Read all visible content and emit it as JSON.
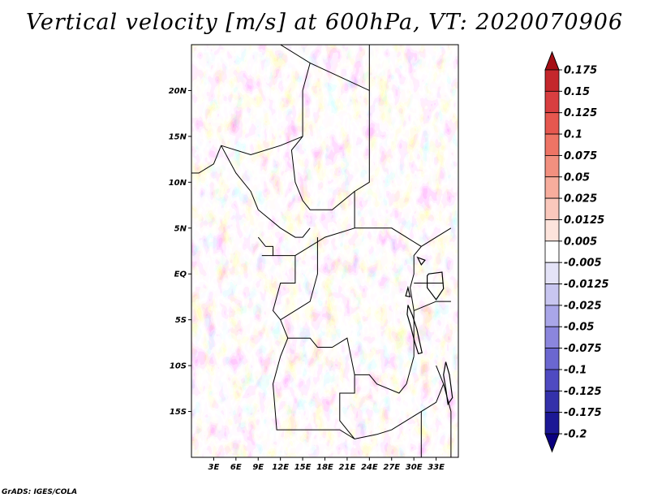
{
  "title": "Vertical velocity [m/s] at 600hPa, VT: 2020070906",
  "credit": "GrADS: IGES/COLA",
  "map": {
    "lon_range": [
      0,
      36
    ],
    "lat_range": [
      -20,
      25
    ],
    "x_ticks": [
      3,
      6,
      9,
      12,
      15,
      18,
      21,
      24,
      27,
      30,
      33
    ],
    "x_tick_labels": [
      "3E",
      "6E",
      "9E",
      "12E",
      "15E",
      "18E",
      "21E",
      "24E",
      "27E",
      "30E",
      "33E"
    ],
    "y_ticks": [
      20,
      15,
      10,
      5,
      0,
      -5,
      -10,
      -15
    ],
    "y_tick_labels": [
      "20N",
      "15N",
      "10N",
      "5N",
      "EQ",
      "5S",
      "10S",
      "15S"
    ],
    "borders": [
      [
        [
          12,
          25
        ],
        [
          16,
          23
        ],
        [
          24,
          20
        ],
        [
          24,
          25
        ]
      ],
      [
        [
          24,
          20
        ],
        [
          24,
          10
        ],
        [
          22,
          9
        ],
        [
          22,
          5
        ],
        [
          24,
          5
        ],
        [
          27,
          5
        ],
        [
          29,
          4
        ],
        [
          31,
          3
        ]
      ],
      [
        [
          16,
          23
        ],
        [
          15,
          20
        ],
        [
          15,
          15
        ],
        [
          13.5,
          13.5
        ],
        [
          14,
          10
        ],
        [
          15,
          8
        ],
        [
          16,
          7
        ],
        [
          19,
          7
        ],
        [
          22,
          9
        ]
      ],
      [
        [
          15,
          15
        ],
        [
          12,
          14
        ],
        [
          8,
          13
        ],
        [
          4,
          14
        ],
        [
          3,
          12
        ],
        [
          1,
          11
        ],
        [
          0,
          11
        ]
      ],
      [
        [
          4,
          14
        ],
        [
          6,
          11
        ],
        [
          8,
          9
        ],
        [
          9,
          7
        ],
        [
          12,
          5
        ],
        [
          14,
          4
        ],
        [
          15,
          4
        ],
        [
          16,
          5
        ]
      ],
      [
        [
          9,
          4
        ],
        [
          10,
          3
        ],
        [
          11,
          3
        ],
        [
          11,
          2
        ],
        [
          9.5,
          2
        ]
      ],
      [
        [
          11,
          2
        ],
        [
          14,
          2
        ],
        [
          14,
          -1
        ],
        [
          12,
          -1
        ],
        [
          11,
          -4
        ],
        [
          12,
          -5
        ]
      ],
      [
        [
          14,
          2
        ],
        [
          18,
          4
        ],
        [
          22,
          5
        ]
      ],
      [
        [
          17,
          4
        ],
        [
          17,
          0
        ],
        [
          16,
          -3
        ],
        [
          12,
          -5
        ],
        [
          12.5,
          -6
        ],
        [
          13,
          -7
        ],
        [
          16,
          -7
        ],
        [
          17,
          -8
        ],
        [
          19,
          -8
        ],
        [
          21,
          -7
        ],
        [
          22,
          -11
        ],
        [
          24,
          -11
        ],
        [
          25,
          -12
        ],
        [
          28,
          -13
        ],
        [
          29,
          -12
        ],
        [
          30,
          -9
        ]
      ],
      [
        [
          13,
          -7
        ],
        [
          12,
          -9
        ],
        [
          11,
          -12
        ],
        [
          11.5,
          -17
        ],
        [
          12,
          -17
        ],
        [
          20,
          -17
        ],
        [
          22,
          -18
        ],
        [
          25,
          -17.5
        ]
      ],
      [
        [
          22,
          -11
        ],
        [
          22,
          -13
        ],
        [
          20,
          -13
        ],
        [
          20,
          -16
        ],
        [
          22,
          -18
        ]
      ],
      [
        [
          25,
          -17.5
        ],
        [
          27,
          -17
        ],
        [
          29,
          -16
        ],
        [
          31,
          -15
        ],
        [
          33,
          -14
        ],
        [
          34,
          -12
        ]
      ],
      [
        [
          31,
          -15
        ],
        [
          31,
          -20
        ]
      ],
      [
        [
          30,
          -9
        ],
        [
          30,
          -4
        ],
        [
          29.5,
          -1.5
        ],
        [
          30,
          0
        ],
        [
          30,
          2
        ],
        [
          31,
          3
        ],
        [
          33,
          4
        ],
        [
          35,
          5
        ]
      ],
      [
        [
          30,
          -1
        ],
        [
          33,
          -1
        ],
        [
          34,
          -1
        ]
      ],
      [
        [
          30,
          -4
        ],
        [
          33,
          -3
        ],
        [
          35,
          -3
        ]
      ],
      [
        [
          33,
          -10
        ],
        [
          34,
          -12
        ],
        [
          35,
          -15
        ],
        [
          35,
          -20
        ]
      ]
    ],
    "lakes": [
      [
        [
          32,
          0
        ],
        [
          33.8,
          0.2
        ],
        [
          34,
          -1.6
        ],
        [
          33,
          -2.8
        ],
        [
          31.8,
          -1.5
        ],
        [
          31.8,
          -0.2
        ],
        [
          32,
          0
        ]
      ],
      [
        [
          29.2,
          -3.4
        ],
        [
          29.8,
          -4.5
        ],
        [
          30.4,
          -6
        ],
        [
          30.8,
          -7.5
        ],
        [
          31.1,
          -8.6
        ],
        [
          30.6,
          -8.7
        ],
        [
          30.1,
          -7.4
        ],
        [
          29.6,
          -5.8
        ],
        [
          29.1,
          -4.4
        ],
        [
          29.2,
          -3.4
        ]
      ],
      [
        [
          34.3,
          -9.6
        ],
        [
          34.8,
          -11
        ],
        [
          35.2,
          -13.5
        ],
        [
          34.6,
          -14.2
        ],
        [
          34.3,
          -12.5
        ],
        [
          34,
          -11
        ],
        [
          34.3,
          -9.6
        ]
      ],
      [
        [
          29.2,
          -1.5
        ],
        [
          29.5,
          -2.5
        ],
        [
          28.9,
          -2.4
        ],
        [
          29.2,
          -1.5
        ]
      ],
      [
        [
          30.5,
          1.8
        ],
        [
          31.5,
          1.5
        ],
        [
          31,
          1
        ],
        [
          30.5,
          1.8
        ]
      ]
    ]
  },
  "colorbar": {
    "labels": [
      "0.175",
      "0.15",
      "0.125",
      "0.1",
      "0.075",
      "0.05",
      "0.025",
      "0.0125",
      "0.005",
      "-0.005",
      "-0.0125",
      "-0.025",
      "-0.05",
      "-0.075",
      "-0.1",
      "-0.125",
      "-0.175",
      "-0.2"
    ],
    "colors": [
      "#a50f15",
      "#c4272c",
      "#d83e40",
      "#e6574f",
      "#ee7465",
      "#f2907f",
      "#f7ad9d",
      "#fac8bc",
      "#fde4dc",
      "#ffffff",
      "#e4e3f7",
      "#c8c6f0",
      "#a9a6e8",
      "#8b86dd",
      "#6b67d0",
      "#4f4ac1",
      "#3431aa",
      "#1c1895",
      "#0a0080"
    ]
  }
}
